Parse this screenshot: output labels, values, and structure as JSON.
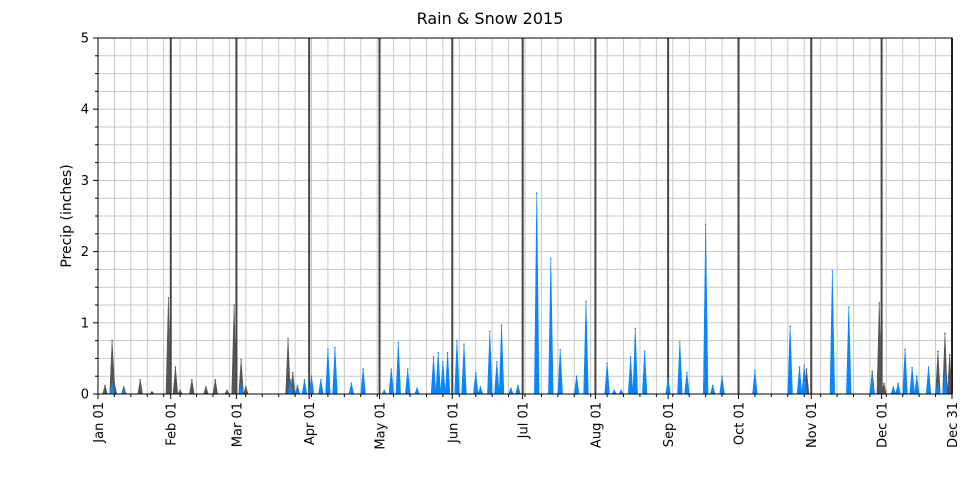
{
  "chart_data": {
    "type": "area",
    "title": "Rain & Snow 2015",
    "xlabel": "",
    "ylabel": "Precip (inches)",
    "ylim": [
      0,
      5
    ],
    "yticks": [
      "0",
      "1",
      "2",
      "3",
      "4",
      "5"
    ],
    "xlim": [
      "2015-01-01",
      "2015-12-31"
    ],
    "xtick_labels": [
      "Jan 01",
      "Feb 01",
      "Mar 01",
      "Apr 01",
      "May 01",
      "Jun 01",
      "Jul 01",
      "Aug 01",
      "Sep 01",
      "Oct 01",
      "Nov 01",
      "Dec 01",
      "Dec 31"
    ],
    "xtick_dates": [
      "2015-01-01",
      "2015-02-01",
      "2015-03-01",
      "2015-04-01",
      "2015-05-01",
      "2015-06-01",
      "2015-07-01",
      "2015-08-01",
      "2015-09-01",
      "2015-10-01",
      "2015-11-01",
      "2015-12-01",
      "2015-12-31"
    ],
    "grid": true,
    "series": [
      {
        "color": "#555555",
        "points": [
          [
            "2015-01-04",
            0.12
          ],
          [
            "2015-01-07",
            0.75
          ],
          [
            "2015-01-08",
            0.15
          ],
          [
            "2015-01-12",
            0.1
          ],
          [
            "2015-01-19",
            0.2
          ],
          [
            "2015-01-24",
            0.03
          ],
          [
            "2015-01-31",
            1.35
          ],
          [
            "2015-02-03",
            0.38
          ],
          [
            "2015-02-05",
            0.05
          ],
          [
            "2015-02-10",
            0.2
          ],
          [
            "2015-02-16",
            0.1
          ],
          [
            "2015-02-20",
            0.2
          ],
          [
            "2015-02-25",
            0.05
          ],
          [
            "2015-02-28",
            1.25
          ],
          [
            "2015-03-03",
            0.48
          ],
          [
            "2015-03-05",
            0.1
          ],
          [
            "2015-03-23",
            0.78
          ],
          [
            "2015-03-25",
            0.3
          ],
          [
            "2015-03-27",
            0.05
          ],
          [
            "2015-10-30",
            0.35
          ],
          [
            "2015-11-27",
            0.32
          ],
          [
            "2015-11-30",
            1.28
          ],
          [
            "2015-12-02",
            0.15
          ],
          [
            "2015-12-08",
            0.12
          ],
          [
            "2015-12-25",
            0.6
          ],
          [
            "2015-12-28",
            0.85
          ],
          [
            "2015-12-30",
            0.55
          ]
        ]
      },
      {
        "color": "#0a84ff",
        "points": [
          [
            "2015-01-07",
            0.15
          ],
          [
            "2015-01-12",
            0.05
          ],
          [
            "2015-03-03",
            0.15
          ],
          [
            "2015-03-24",
            0.2
          ],
          [
            "2015-03-27",
            0.12
          ],
          [
            "2015-03-30",
            0.2
          ],
          [
            "2015-04-02",
            0.25
          ],
          [
            "2015-04-06",
            0.2
          ],
          [
            "2015-04-09",
            0.63
          ],
          [
            "2015-04-12",
            0.65
          ],
          [
            "2015-04-19",
            0.15
          ],
          [
            "2015-04-24",
            0.35
          ],
          [
            "2015-05-03",
            0.05
          ],
          [
            "2015-05-06",
            0.35
          ],
          [
            "2015-05-09",
            0.72
          ],
          [
            "2015-05-13",
            0.35
          ],
          [
            "2015-05-17",
            0.08
          ],
          [
            "2015-05-24",
            0.52
          ],
          [
            "2015-05-26",
            0.58
          ],
          [
            "2015-05-28",
            0.45
          ],
          [
            "2015-05-30",
            0.58
          ],
          [
            "2015-06-03",
            0.75
          ],
          [
            "2015-06-06",
            0.7
          ],
          [
            "2015-06-11",
            0.3
          ],
          [
            "2015-06-13",
            0.1
          ],
          [
            "2015-06-17",
            0.88
          ],
          [
            "2015-06-20",
            0.45
          ],
          [
            "2015-06-22",
            0.97
          ],
          [
            "2015-06-26",
            0.08
          ],
          [
            "2015-06-29",
            0.12
          ],
          [
            "2015-07-07",
            2.82
          ],
          [
            "2015-07-13",
            1.9
          ],
          [
            "2015-07-17",
            0.62
          ],
          [
            "2015-07-24",
            0.25
          ],
          [
            "2015-07-28",
            1.3
          ],
          [
            "2015-08-06",
            0.43
          ],
          [
            "2015-08-09",
            0.05
          ],
          [
            "2015-08-12",
            0.05
          ],
          [
            "2015-08-16",
            0.52
          ],
          [
            "2015-08-18",
            0.92
          ],
          [
            "2015-08-22",
            0.6
          ],
          [
            "2015-09-01",
            0.22
          ],
          [
            "2015-09-06",
            0.73
          ],
          [
            "2015-09-09",
            0.3
          ],
          [
            "2015-09-17",
            2.38
          ],
          [
            "2015-09-20",
            0.12
          ],
          [
            "2015-09-24",
            0.25
          ],
          [
            "2015-10-08",
            0.33
          ],
          [
            "2015-10-23",
            0.95
          ],
          [
            "2015-10-27",
            0.38
          ],
          [
            "2015-10-29",
            0.4
          ],
          [
            "2015-11-10",
            1.73
          ],
          [
            "2015-11-17",
            1.22
          ],
          [
            "2015-11-27",
            0.25
          ],
          [
            "2015-12-06",
            0.1
          ],
          [
            "2015-12-08",
            0.15
          ],
          [
            "2015-12-11",
            0.63
          ],
          [
            "2015-12-14",
            0.37
          ],
          [
            "2015-12-16",
            0.25
          ],
          [
            "2015-12-21",
            0.38
          ],
          [
            "2015-12-25",
            0.15
          ],
          [
            "2015-12-28",
            0.3
          ]
        ]
      }
    ]
  }
}
